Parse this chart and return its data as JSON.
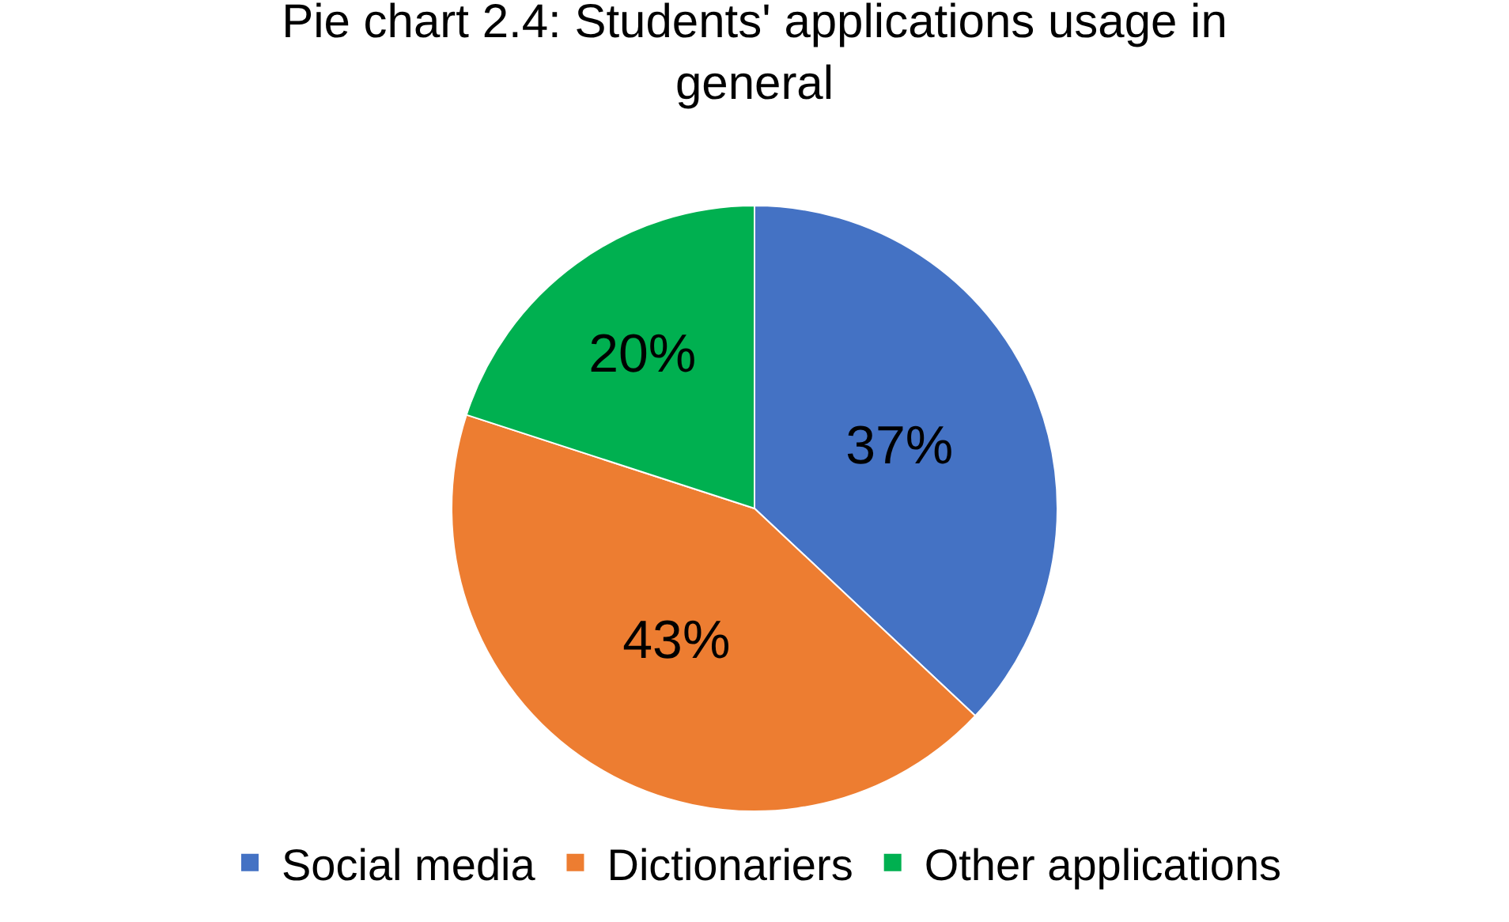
{
  "chart_data": {
    "type": "pie",
    "title": "Pie chart 2.4: Students' applications usage in general",
    "categories": [
      "Social media",
      "Dictionariers",
      "Other applications"
    ],
    "values": [
      37,
      43,
      20
    ],
    "value_labels": [
      "37%",
      "43%",
      "20%"
    ],
    "colors": [
      "#4472c4",
      "#ed7d31",
      "#00b050"
    ],
    "legend": "bottom"
  }
}
